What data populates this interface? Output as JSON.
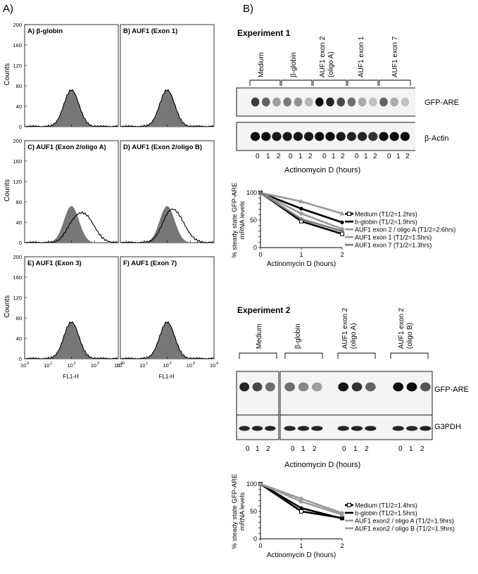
{
  "panelA": {
    "letter": "A)",
    "ylabel": "Counts",
    "xlabel": "FL1-H",
    "yticks": [
      "0",
      "40",
      "80",
      "120",
      "160",
      "200"
    ],
    "xticks": [
      "10",
      "10",
      "10",
      "10",
      "10"
    ],
    "xtick_exps": [
      "0",
      "1",
      "2",
      "3",
      "4"
    ],
    "histograms": [
      {
        "title": "A) β-globin"
      },
      {
        "title": "B) AUF1 (Exon 1)"
      },
      {
        "title": "C) AUF1 (Exon 2/oligo A)"
      },
      {
        "title": "D) AUF1 (Exon 2/oligo B)"
      },
      {
        "title": "E) AUF1 (Exon 3)"
      },
      {
        "title": "F) AUF1 (Exon 7)"
      }
    ]
  },
  "panelB": {
    "letter": "B)",
    "exp1": {
      "title": "Experiment 1",
      "lanes": [
        "Medium",
        "β-globin",
        "AUF1 exon 2 (oligo A)",
        "AUF1 exon 1",
        "AUF1 exon 7"
      ],
      "blot_labels": [
        "GFP-ARE",
        "β-Actin"
      ],
      "time_ticks": [
        "0",
        "1",
        "2"
      ],
      "xlabel": "Actinomycin D (hours)"
    },
    "exp2": {
      "title": "Experiment 2",
      "lanes": [
        "Medium",
        "β-globin",
        "AUF1 exon 2 (oligo A)",
        "AUF1 exon 2 (oligo B)"
      ],
      "blot_labels": [
        "GFP-ARE",
        "G3PDH"
      ],
      "time_ticks": [
        "0",
        "1",
        "2"
      ],
      "xlabel": "Actinomycin D (hours)"
    }
  },
  "chart_data": [
    {
      "type": "line",
      "ylabel": "% steady state GFP-ARE mRNA levels",
      "xlabel": "Actinomycin D (hours)",
      "x": [
        0,
        1,
        2
      ],
      "xlim": [
        0,
        2
      ],
      "ylim": [
        0,
        100
      ],
      "yticks": [
        0,
        10,
        20,
        30,
        40,
        50,
        60,
        70,
        80,
        90,
        100
      ],
      "series": [
        {
          "name": "Medium (T1/2=1.2hrs)",
          "values": [
            100,
            48,
            25
          ],
          "color": "#000000",
          "marker": "open-square"
        },
        {
          "name": "b-globin (T1/2=1.9hrs)",
          "values": [
            100,
            71,
            46
          ],
          "color": "#000000",
          "marker": "filled"
        },
        {
          "name": "AUF1 exon 2 / oligo A (T1/2=2.6hrs)",
          "values": [
            100,
            84,
            62
          ],
          "color": "#999999",
          "marker": "triangle"
        },
        {
          "name": "AUF1 exon 1 (T1/2=1.5hrs)",
          "values": [
            100,
            62,
            34
          ],
          "color": "#999999",
          "marker": "diamond"
        },
        {
          "name": "AUF1 exon 7 (T1/2=1.3hrs)",
          "values": [
            100,
            52,
            30
          ],
          "color": "#777777",
          "marker": "circle"
        }
      ]
    },
    {
      "type": "line",
      "ylabel": "% steady state GFP-ARE mRNA levels",
      "xlabel": "Actinomycin D (hours)",
      "x": [
        0,
        1,
        2
      ],
      "xlim": [
        0,
        2
      ],
      "ylim": [
        0,
        100
      ],
      "yticks": [
        0,
        10,
        20,
        30,
        40,
        50,
        60,
        70,
        80,
        90,
        100
      ],
      "series": [
        {
          "name": "Medium (T1/2=1.4hrs)",
          "values": [
            100,
            50,
            38
          ],
          "color": "#000000",
          "marker": "open-square"
        },
        {
          "name": "b-globin (T1/2=1.5hrs)",
          "values": [
            100,
            56,
            37
          ],
          "color": "#000000",
          "marker": "filled"
        },
        {
          "name": "AUF1 exon2 / oligo A (T1/2=1.9hrs)",
          "values": [
            100,
            68,
            44
          ],
          "color": "#999999",
          "marker": "triangle"
        },
        {
          "name": "AUF1 exon2 / oligo B (T1/2=1.9hrs)",
          "values": [
            100,
            73,
            47
          ],
          "color": "#999999",
          "marker": "diamond"
        }
      ]
    }
  ]
}
